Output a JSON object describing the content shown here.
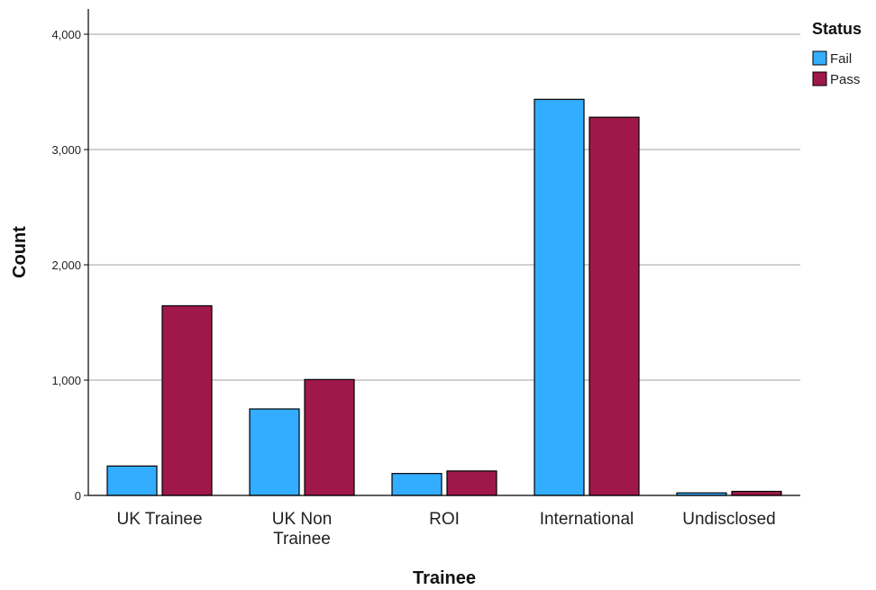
{
  "chart_data": {
    "type": "bar",
    "title": "",
    "xlabel": "Trainee",
    "ylabel": "Count",
    "categories": [
      [
        "UK Trainee"
      ],
      [
        "UK Non",
        "Trainee"
      ],
      [
        "ROI"
      ],
      [
        "International"
      ],
      [
        "Undisclosed"
      ]
    ],
    "series": [
      {
        "name": "Fail",
        "color": "#33adff",
        "values": [
          255,
          750,
          190,
          3435,
          22
        ]
      },
      {
        "name": "Pass",
        "color": "#a0184a",
        "values": [
          1645,
          1005,
          212,
          3280,
          35
        ]
      }
    ],
    "ylim": [
      0,
      4200
    ],
    "yticks": [
      0,
      1000,
      2000,
      3000,
      4000
    ],
    "ytick_labels": [
      "0",
      "1,000",
      "2,000",
      "3,000",
      "4,000"
    ],
    "grid": true,
    "legend": {
      "title": "Status",
      "position": "top-right"
    }
  }
}
